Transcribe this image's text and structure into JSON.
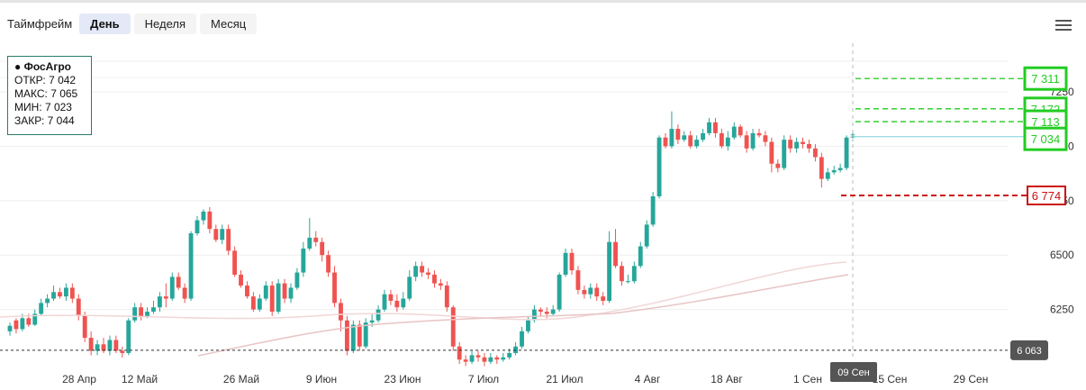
{
  "toolbar": {
    "label": "Таймфрейм",
    "buttons": [
      "День",
      "Неделя",
      "Месяц"
    ],
    "active": 0
  },
  "legend": {
    "title": "● ФосАгро",
    "open": "ОТКР: 7 042",
    "high": "МАКС: 7 065",
    "low": "МИН: 7 023",
    "close": "ЗАКР: 7 044"
  },
  "icons": {
    "menu": "menu-icon"
  },
  "colors": {
    "up": "#26a69a",
    "down": "#ef5350",
    "accent": "#22cc22",
    "stop": "#cc1111",
    "cursor": "#666666"
  },
  "chart_data": {
    "type": "candlestick",
    "title": "",
    "instrument": "ФосАгро",
    "y_axis": {
      "range": [
        6025,
        7465
      ],
      "ticks": [
        6250,
        6500,
        6750,
        7000,
        7250
      ],
      "tick_labels": [
        "6250",
        "6500",
        "6750",
        "7000",
        "7250"
      ],
      "position": "right"
    },
    "x_axis": {
      "tick_labels": [
        "28 Апр",
        "12 Май",
        "26 Май",
        "9 Июн",
        "23 Июн",
        "7 Июл",
        "21 Июл",
        "4 Авг",
        "18 Авг",
        "1 Сен",
        "15 Сен",
        "29 Сен"
      ],
      "cursor_label": "09 Сен"
    },
    "bottom_marker": {
      "value": 6063,
      "label": "6 063"
    },
    "current_price": 7044,
    "levels": [
      {
        "value": 7311,
        "label": "7 311",
        "kind": "target"
      },
      {
        "value": 7172,
        "label": "7 172",
        "kind": "target"
      },
      {
        "value": 7113,
        "label": "7 113",
        "kind": "target"
      },
      {
        "value": 7034,
        "label": "7 034",
        "kind": "entry"
      },
      {
        "value": 6774,
        "label": "6 774",
        "kind": "stop"
      }
    ],
    "candles": [
      [
        6150,
        6175,
        6190,
        6130
      ],
      [
        6200,
        6160,
        6210,
        6140
      ],
      [
        6160,
        6210,
        6230,
        6150
      ],
      [
        6210,
        6180,
        6230,
        6170
      ],
      [
        6180,
        6230,
        6250,
        6175
      ],
      [
        6230,
        6280,
        6300,
        6220
      ],
      [
        6280,
        6300,
        6320,
        6260
      ],
      [
        6300,
        6330,
        6360,
        6290
      ],
      [
        6330,
        6310,
        6350,
        6300
      ],
      [
        6310,
        6350,
        6370,
        6290
      ],
      [
        6350,
        6300,
        6370,
        6280
      ],
      [
        6300,
        6220,
        6320,
        6200
      ],
      [
        6220,
        6120,
        6240,
        6100
      ],
      [
        6120,
        6060,
        6150,
        6040
      ],
      [
        6060,
        6090,
        6110,
        6040
      ],
      [
        6090,
        6060,
        6120,
        6050
      ],
      [
        6060,
        6110,
        6130,
        6040
      ],
      [
        6110,
        6060,
        6130,
        6050
      ],
      [
        6060,
        6050,
        6080,
        6030
      ],
      [
        6050,
        6200,
        6210,
        6040
      ],
      [
        6200,
        6260,
        6280,
        6190
      ],
      [
        6260,
        6220,
        6280,
        6200
      ],
      [
        6220,
        6240,
        6260,
        6210
      ],
      [
        6240,
        6260,
        6290,
        6230
      ],
      [
        6260,
        6310,
        6330,
        6240
      ],
      [
        6310,
        6300,
        6370,
        6260
      ],
      [
        6300,
        6400,
        6420,
        6290
      ],
      [
        6400,
        6350,
        6420,
        6340
      ],
      [
        6350,
        6300,
        6370,
        6280
      ],
      [
        6300,
        6600,
        6610,
        6290
      ],
      [
        6600,
        6660,
        6680,
        6590
      ],
      [
        6660,
        6700,
        6710,
        6640
      ],
      [
        6700,
        6620,
        6720,
        6600
      ],
      [
        6620,
        6570,
        6640,
        6560
      ],
      [
        6570,
        6620,
        6640,
        6550
      ],
      [
        6620,
        6520,
        6640,
        6500
      ],
      [
        6520,
        6410,
        6540,
        6400
      ],
      [
        6410,
        6360,
        6430,
        6350
      ],
      [
        6360,
        6310,
        6380,
        6300
      ],
      [
        6310,
        6250,
        6330,
        6240
      ],
      [
        6250,
        6300,
        6320,
        6240
      ],
      [
        6300,
        6360,
        6380,
        6290
      ],
      [
        6360,
        6240,
        6380,
        6220
      ],
      [
        6240,
        6370,
        6390,
        6230
      ],
      [
        6370,
        6300,
        6390,
        6280
      ],
      [
        6300,
        6350,
        6370,
        6280
      ],
      [
        6350,
        6420,
        6440,
        6340
      ],
      [
        6420,
        6530,
        6560,
        6400
      ],
      [
        6530,
        6580,
        6670,
        6520
      ],
      [
        6580,
        6560,
        6610,
        6540
      ],
      [
        6560,
        6500,
        6580,
        6470
      ],
      [
        6500,
        6420,
        6520,
        6400
      ],
      [
        6420,
        6280,
        6450,
        6260
      ],
      [
        6280,
        6200,
        6300,
        6150
      ],
      [
        6200,
        6060,
        6220,
        6040
      ],
      [
        6060,
        6180,
        6200,
        6050
      ],
      [
        6180,
        6080,
        6200,
        6060
      ],
      [
        6080,
        6190,
        6210,
        6070
      ],
      [
        6190,
        6200,
        6230,
        6170
      ],
      [
        6200,
        6250,
        6270,
        6190
      ],
      [
        6250,
        6320,
        6340,
        6240
      ],
      [
        6320,
        6290,
        6340,
        6270
      ],
      [
        6290,
        6260,
        6320,
        6240
      ],
      [
        6260,
        6300,
        6330,
        6250
      ],
      [
        6300,
        6400,
        6430,
        6290
      ],
      [
        6400,
        6450,
        6470,
        6380
      ],
      [
        6450,
        6420,
        6470,
        6400
      ],
      [
        6420,
        6410,
        6440,
        6390
      ],
      [
        6410,
        6370,
        6430,
        6350
      ],
      [
        6370,
        6360,
        6390,
        6340
      ],
      [
        6360,
        6260,
        6380,
        6240
      ],
      [
        6260,
        6080,
        6270,
        6060
      ],
      [
        6080,
        6020,
        6100,
        6000
      ],
      [
        6020,
        6010,
        6040,
        5990
      ],
      [
        6010,
        6040,
        6060,
        6000
      ],
      [
        6040,
        6030,
        6060,
        6010
      ],
      [
        6030,
        6010,
        6050,
        5990
      ],
      [
        6010,
        6030,
        6050,
        6000
      ],
      [
        6030,
        6020,
        6040,
        6000
      ],
      [
        6020,
        6030,
        6050,
        6010
      ],
      [
        6030,
        6050,
        6070,
        6020
      ],
      [
        6050,
        6080,
        6100,
        6040
      ],
      [
        6080,
        6150,
        6170,
        6070
      ],
      [
        6150,
        6200,
        6220,
        6140
      ],
      [
        6200,
        6250,
        6270,
        6190
      ],
      [
        6250,
        6240,
        6260,
        6220
      ],
      [
        6240,
        6230,
        6260,
        6210
      ],
      [
        6230,
        6250,
        6270,
        6220
      ],
      [
        6250,
        6410,
        6420,
        6240
      ],
      [
        6410,
        6510,
        6530,
        6400
      ],
      [
        6510,
        6430,
        6530,
        6410
      ],
      [
        6430,
        6340,
        6450,
        6320
      ],
      [
        6340,
        6320,
        6360,
        6300
      ],
      [
        6320,
        6350,
        6370,
        6300
      ],
      [
        6350,
        6310,
        6370,
        6290
      ],
      [
        6310,
        6290,
        6330,
        6270
      ],
      [
        6290,
        6560,
        6610,
        6280
      ],
      [
        6560,
        6450,
        6620,
        6440
      ],
      [
        6450,
        6380,
        6470,
        6360
      ],
      [
        6380,
        6380,
        6410,
        6370
      ],
      [
        6380,
        6450,
        6470,
        6370
      ],
      [
        6450,
        6540,
        6560,
        6440
      ],
      [
        6540,
        6640,
        6660,
        6530
      ],
      [
        6640,
        6770,
        6790,
        6630
      ],
      [
        6770,
        7040,
        7050,
        6760
      ],
      [
        7040,
        7000,
        7060,
        6990
      ],
      [
        7000,
        7080,
        7160,
        6990
      ],
      [
        7080,
        7030,
        7100,
        7010
      ],
      [
        7030,
        7050,
        7070,
        7020
      ],
      [
        7050,
        7000,
        7070,
        6990
      ],
      [
        7000,
        7030,
        7050,
        6990
      ],
      [
        7030,
        7060,
        7080,
        7020
      ],
      [
        7060,
        7110,
        7130,
        7050
      ],
      [
        7110,
        7060,
        7130,
        7040
      ],
      [
        7060,
        7000,
        7080,
        6990
      ],
      [
        7000,
        7040,
        7070,
        6980
      ],
      [
        7040,
        7090,
        7110,
        7030
      ],
      [
        7090,
        7050,
        7100,
        7040
      ],
      [
        7050,
        6990,
        7070,
        6970
      ],
      [
        6990,
        7060,
        7080,
        6980
      ],
      [
        7060,
        7050,
        7080,
        7040
      ],
      [
        7050,
        7020,
        7070,
        7000
      ],
      [
        7020,
        6920,
        7040,
        6880
      ],
      [
        6920,
        6900,
        6940,
        6880
      ],
      [
        6900,
        7030,
        7050,
        6890
      ],
      [
        7030,
        6990,
        7050,
        6970
      ],
      [
        6990,
        7020,
        7040,
        6970
      ],
      [
        7020,
        7010,
        7040,
        6990
      ],
      [
        7010,
        6990,
        7030,
        6970
      ],
      [
        6990,
        6950,
        7010,
        6930
      ],
      [
        6950,
        6850,
        6970,
        6810
      ],
      [
        6850,
        6880,
        6900,
        6840
      ],
      [
        6880,
        6890,
        6910,
        6870
      ],
      [
        6890,
        6900,
        6920,
        6880
      ],
      [
        6900,
        7040,
        7050,
        6890
      ],
      [
        7042,
        7044,
        7065,
        7023
      ]
    ]
  }
}
